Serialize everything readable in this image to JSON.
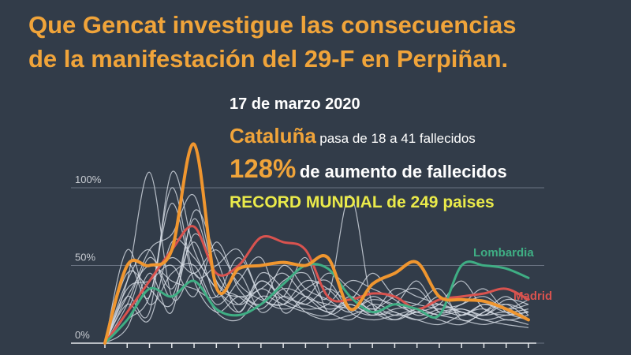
{
  "headline": {
    "line1": "Que Gencat investigue las consecuencias",
    "line2": "de la manifestación del 29-F en Perpiñan."
  },
  "info": {
    "date": "17 de marzo 2020",
    "region": "Cataluña",
    "change_text": "pasa de 18 a 41 fallecidos",
    "percent": "128%",
    "percent_text": "de aumento de fallecidos",
    "record": "RECORD MUNDIAL de 249 paises"
  },
  "colors": {
    "background": "#323c49",
    "cataluna": "#f0962f",
    "lombardia": "#3fae84",
    "madrid": "#d9534f",
    "other_countries": "#d7dde6",
    "headline": "#f0a43a",
    "record": "#eaea4a"
  },
  "chart_data": {
    "type": "line",
    "x": [
      0,
      1,
      2,
      3,
      4,
      5,
      6,
      7,
      8,
      9,
      10,
      11,
      12,
      13,
      14,
      15,
      16,
      17,
      18,
      19
    ],
    "ylim": [
      0,
      100
    ],
    "y_ticks": [
      "0%",
      "50%",
      "100%"
    ],
    "grid": true,
    "series": [
      {
        "name": "Cataluña",
        "color": "#f0962f",
        "highlight": true,
        "values": [
          0,
          50,
          50,
          60,
          128,
          36,
          48,
          50,
          52,
          50,
          55,
          22,
          38,
          45,
          52,
          30,
          28,
          27,
          22,
          15
        ]
      },
      {
        "name": "Lombardia",
        "color": "#3fae84",
        "highlight": true,
        "values": [
          0,
          15,
          35,
          30,
          40,
          22,
          18,
          25,
          38,
          50,
          48,
          30,
          20,
          25,
          22,
          18,
          50,
          50,
          48,
          42
        ]
      },
      {
        "name": "Madrid",
        "color": "#d9534f",
        "highlight": true,
        "values": [
          0,
          20,
          40,
          60,
          75,
          45,
          50,
          68,
          65,
          60,
          30,
          28,
          32,
          30,
          22,
          28,
          30,
          32,
          35,
          28
        ]
      },
      {
        "name": "",
        "color": "#d7dde6",
        "values": [
          0,
          40,
          110,
          30,
          45,
          20,
          15,
          30,
          25,
          20,
          18,
          30,
          20,
          15,
          22,
          18,
          20,
          15,
          18,
          20
        ]
      },
      {
        "name": "",
        "color": "#d7dde6",
        "values": [
          0,
          30,
          20,
          110,
          60,
          35,
          25,
          40,
          30,
          25,
          20,
          15,
          25,
          20,
          15,
          12,
          18,
          22,
          15,
          18
        ]
      },
      {
        "name": "",
        "color": "#d7dde6",
        "values": [
          0,
          25,
          60,
          70,
          95,
          40,
          30,
          35,
          45,
          30,
          25,
          22,
          18,
          25,
          20,
          15,
          12,
          20,
          25,
          15
        ]
      },
      {
        "name": "",
        "color": "#d7dde6",
        "values": [
          0,
          50,
          30,
          100,
          45,
          50,
          60,
          30,
          25,
          35,
          40,
          20,
          15,
          18,
          22,
          25,
          20,
          15,
          12,
          10
        ]
      },
      {
        "name": "",
        "color": "#d7dde6",
        "values": [
          0,
          10,
          45,
          20,
          85,
          55,
          20,
          45,
          35,
          20,
          15,
          18,
          22,
          15,
          20,
          18,
          15,
          12,
          15,
          12
        ]
      },
      {
        "name": "",
        "color": "#d7dde6",
        "values": [
          0,
          35,
          40,
          50,
          30,
          65,
          35,
          25,
          40,
          45,
          30,
          95,
          25,
          20,
          15,
          20,
          22,
          18,
          20,
          15
        ]
      },
      {
        "name": "",
        "color": "#d7dde6",
        "values": [
          0,
          20,
          55,
          35,
          65,
          30,
          45,
          20,
          30,
          25,
          35,
          28,
          45,
          30,
          25,
          22,
          18,
          25,
          20,
          22
        ]
      },
      {
        "name": "",
        "color": "#d7dde6",
        "values": [
          0,
          60,
          25,
          45,
          50,
          25,
          40,
          55,
          20,
          30,
          22,
          25,
          20,
          35,
          30,
          25,
          20,
          18,
          25,
          20
        ]
      },
      {
        "name": "",
        "color": "#d7dde6",
        "values": [
          0,
          15,
          30,
          90,
          40,
          20,
          30,
          25,
          50,
          35,
          28,
          20,
          30,
          25,
          40,
          20,
          25,
          30,
          22,
          25
        ]
      },
      {
        "name": "",
        "color": "#d7dde6",
        "values": [
          0,
          45,
          35,
          25,
          70,
          45,
          25,
          35,
          30,
          55,
          20,
          25,
          18,
          22,
          25,
          35,
          15,
          20,
          30,
          18
        ]
      },
      {
        "name": "",
        "color": "#d7dde6",
        "values": [
          0,
          30,
          50,
          40,
          35,
          30,
          55,
          30,
          22,
          28,
          45,
          35,
          25,
          18,
          20,
          25,
          40,
          22,
          18,
          20
        ]
      },
      {
        "name": "",
        "color": "#d7dde6",
        "values": [
          0,
          25,
          15,
          65,
          55,
          35,
          20,
          40,
          28,
          22,
          25,
          40,
          35,
          28,
          18,
          22,
          25,
          35,
          20,
          15
        ]
      },
      {
        "name": "",
        "color": "#d7dde6",
        "values": [
          0,
          40,
          60,
          30,
          80,
          40,
          30,
          22,
          35,
          30,
          20,
          28,
          22,
          30,
          35,
          20,
          22,
          18,
          28,
          25
        ]
      },
      {
        "name": "",
        "color": "#d7dde6",
        "values": [
          0,
          20,
          40,
          55,
          45,
          60,
          38,
          28,
          25,
          40,
          35,
          22,
          28,
          25,
          20,
          30,
          18,
          25,
          22,
          28
        ]
      }
    ]
  }
}
